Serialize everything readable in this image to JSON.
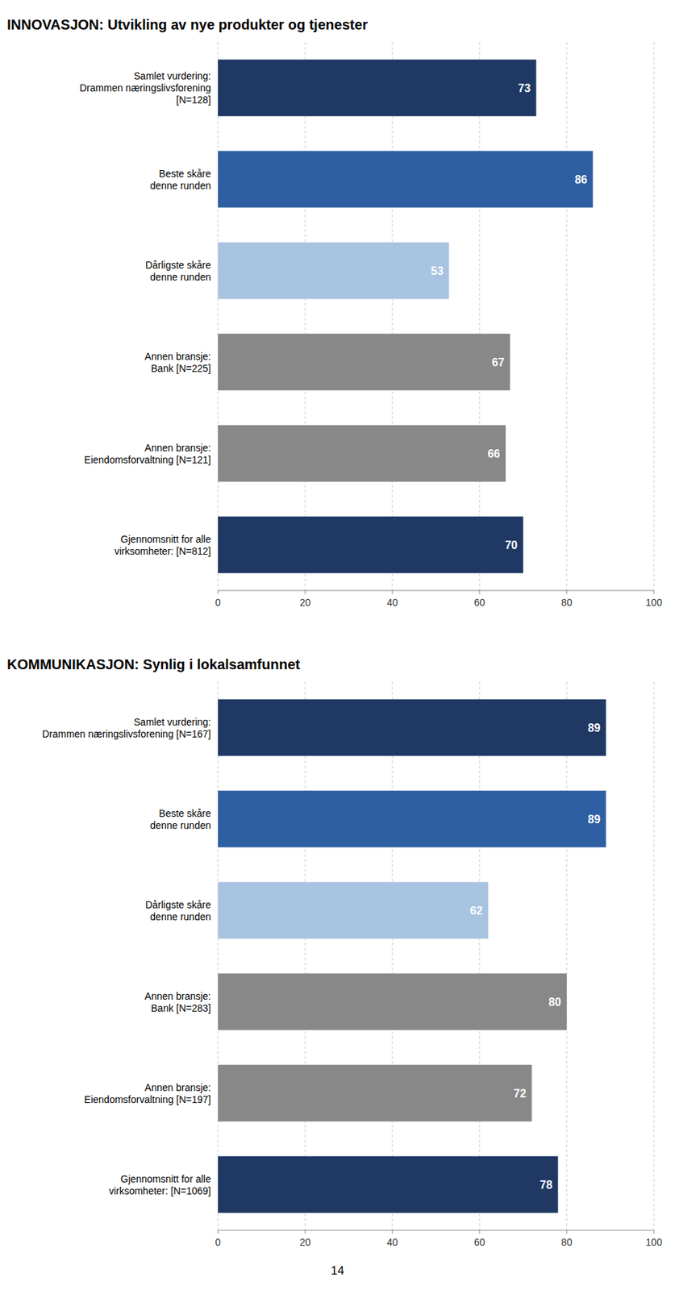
{
  "chart_data": [
    {
      "type": "bar",
      "orientation": "horizontal",
      "title": "INNOVASJON: Utvikling av nye produkter og tjenester",
      "categories": [
        "Samlet vurdering:\nDrammen næringslivsforening\n[N=128]",
        "Beste skåre\ndenne runden",
        "Dårligste skåre\ndenne runden",
        "Annen bransje:\nBank [N=225]",
        "Annen bransje:\nEiendomsforvaltning [N=121]",
        "Gjennomsnitt for alle\nvirksomheter:  [N=812]"
      ],
      "values": [
        73,
        86,
        53,
        67,
        66,
        70
      ],
      "colors": [
        "#1f3864",
        "#2e5fa3",
        "#a8c4e0",
        "#888888",
        "#888888",
        "#1f3864"
      ],
      "xlim": [
        0,
        100
      ],
      "xticks": [
        0,
        20,
        40,
        60,
        80,
        100
      ],
      "grid": true,
      "data_labels": true
    },
    {
      "type": "bar",
      "orientation": "horizontal",
      "title": "KOMMUNIKASJON: Synlig i lokalsamfunnet",
      "categories": [
        "Samlet vurdering:\nDrammen næringslivsforening [N=167]",
        "Beste skåre\ndenne runden",
        "Dårligste skåre\ndenne runden",
        "Annen bransje:\nBank [N=283]",
        "Annen bransje:\nEiendomsforvaltning [N=197]",
        "Gjennomsnitt for alle\nvirksomheter:  [N=1069]"
      ],
      "values": [
        89,
        89,
        62,
        80,
        72,
        78
      ],
      "colors": [
        "#1f3864",
        "#2e5fa3",
        "#a8c4e0",
        "#888888",
        "#888888",
        "#1f3864"
      ],
      "xlim": [
        0,
        100
      ],
      "xticks": [
        0,
        20,
        40,
        60,
        80,
        100
      ],
      "grid": true,
      "data_labels": true,
      "annotations": [
        "14"
      ]
    }
  ]
}
